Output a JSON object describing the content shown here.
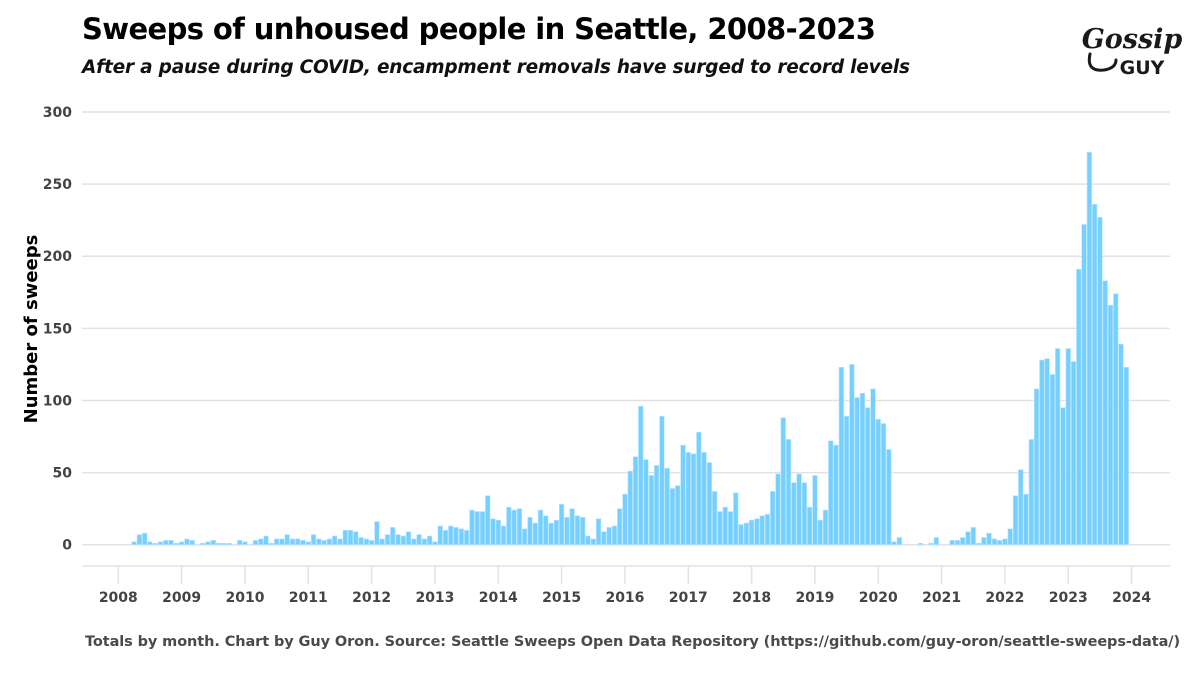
{
  "title": "Sweeps of unhoused people in Seattle, 2008-2023",
  "subtitle": "After a pause during COVID, encampment removals have surged to record levels",
  "footer": "Totals by month. Chart by Guy Oron. Source: Seattle Sweeps Open Data Repository (https://github.com/guy-oron/seattle-sweeps-data/)",
  "logo": {
    "line1": "Gossip",
    "line2": "GUY"
  },
  "colors": {
    "bar": "#75CFFF",
    "bar_edge": "#B8E6FF",
    "grid": "#E2E2E2",
    "text": "#444444"
  },
  "chart_data": {
    "type": "bar",
    "title": "Sweeps of unhoused people in Seattle, 2008-2023",
    "xlabel": "",
    "ylabel": "Number of sweeps",
    "ylim": [
      0,
      300
    ],
    "xlim": [
      "2008-01",
      "2024-01"
    ],
    "yticks": [
      0,
      50,
      100,
      150,
      200,
      250,
      300
    ],
    "xticks": [
      "2008",
      "2009",
      "2010",
      "2011",
      "2012",
      "2013",
      "2014",
      "2015",
      "2016",
      "2017",
      "2018",
      "2019",
      "2020",
      "2021",
      "2022",
      "2023",
      "2024"
    ],
    "grid": "horizontal",
    "start_month": "2008-01",
    "values_by_year": {
      "2008": [
        0,
        0,
        0,
        2,
        7,
        8,
        2,
        1,
        2,
        3,
        3,
        1
      ],
      "2009": [
        2,
        4,
        3,
        0,
        1,
        2,
        3,
        1,
        1,
        1,
        0,
        3
      ],
      "2010": [
        2,
        0,
        3,
        4,
        6,
        1,
        4,
        4,
        7,
        4,
        4,
        3
      ],
      "2011": [
        2,
        7,
        4,
        3,
        4,
        6,
        4,
        10,
        10,
        9,
        5,
        4
      ],
      "2012": [
        3,
        16,
        4,
        7,
        12,
        7,
        6,
        9,
        4,
        7,
        4,
        6
      ],
      "2013": [
        2,
        13,
        10,
        13,
        12,
        11,
        10,
        24,
        23,
        23,
        34,
        18
      ],
      "2014": [
        17,
        13,
        26,
        24,
        25,
        11,
        19,
        15,
        24,
        20,
        15,
        17
      ],
      "2015": [
        28,
        19,
        25,
        20,
        19,
        6,
        4,
        18,
        9,
        12,
        13,
        25
      ],
      "2016": [
        35,
        51,
        61,
        96,
        59,
        48,
        55,
        89,
        53,
        39,
        41,
        69
      ],
      "2017": [
        64,
        63,
        78,
        64,
        57,
        37,
        23,
        26,
        23,
        36,
        14,
        15
      ],
      "2018": [
        17,
        18,
        20,
        21,
        37,
        49,
        88,
        73,
        43,
        49,
        43,
        26
      ],
      "2019": [
        48,
        17,
        24,
        72,
        69,
        123,
        89,
        125,
        102,
        105,
        95,
        108
      ],
      "2020": [
        87,
        84,
        66,
        2,
        5,
        0,
        0,
        0,
        1,
        0,
        1,
        5
      ],
      "2021": [
        0,
        0,
        3,
        3,
        5,
        9,
        12,
        1,
        5,
        8,
        4,
        3
      ],
      "2022": [
        4,
        11,
        34,
        52,
        35,
        73,
        108,
        128,
        129,
        118,
        136,
        95
      ],
      "2023": [
        136,
        127,
        191,
        222,
        272,
        236,
        227,
        183,
        166,
        174,
        139,
        123
      ]
    }
  }
}
